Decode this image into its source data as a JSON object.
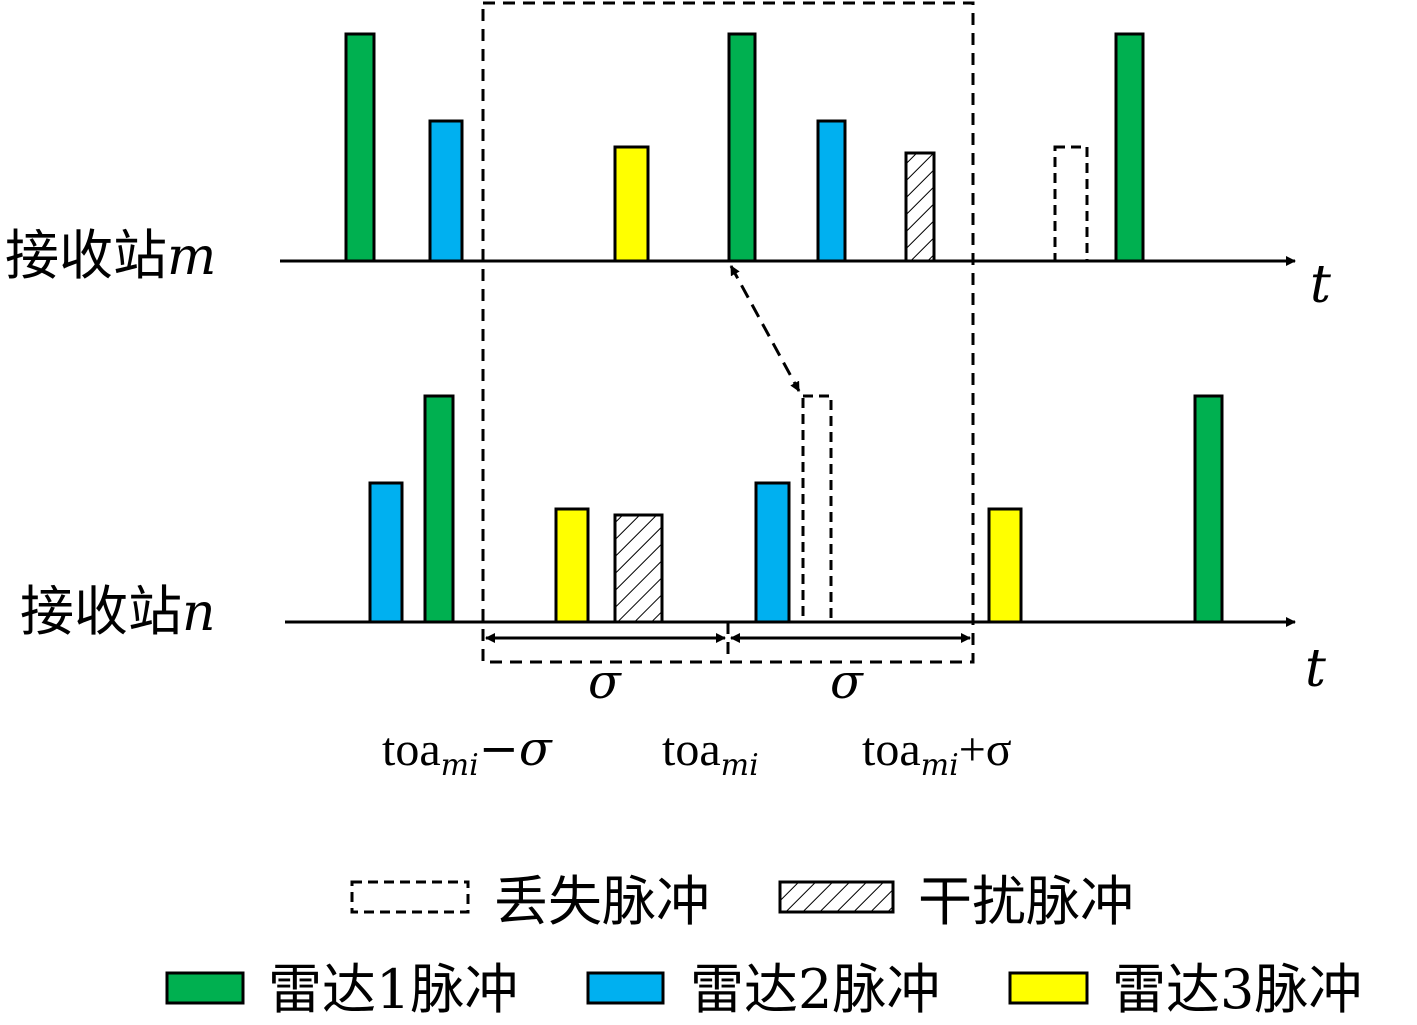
{
  "colors": {
    "radar1": "#00b050",
    "radar2": "#00b0f0",
    "radar3": "#ffff00",
    "outline": "#000000"
  },
  "station_m": {
    "label": "接收站",
    "var": "m",
    "axis": "t"
  },
  "station_n": {
    "label": "接收站",
    "var": "n",
    "axis": "t"
  },
  "window": {
    "sigma": "σ",
    "left_label": {
      "base": "toa",
      "sub": "mi",
      "suffix": "−σ"
    },
    "center_label": {
      "base": "toa",
      "sub": "mi"
    },
    "right_label": {
      "base": "toa",
      "sub": "mi",
      "suffix": "+σ"
    }
  },
  "legend": {
    "lost": "丢失脉冲",
    "interference": "干扰脉冲",
    "radar1": "雷达1脉冲",
    "radar2": "雷达2脉冲",
    "radar3": "雷达3脉冲"
  }
}
